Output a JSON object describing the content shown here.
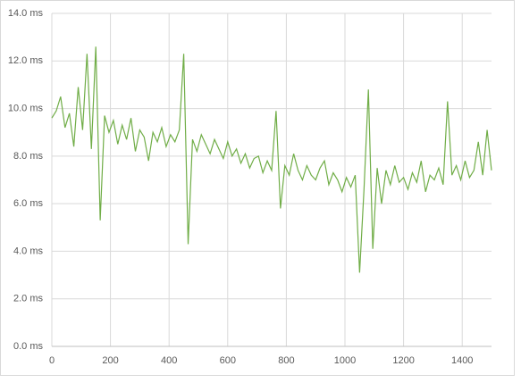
{
  "chart_data": {
    "type": "line",
    "color": "#70ad47",
    "grid": true,
    "x": [
      0,
      15,
      30,
      45,
      60,
      75,
      90,
      105,
      120,
      135,
      150,
      165,
      180,
      195,
      210,
      225,
      240,
      255,
      270,
      285,
      300,
      315,
      330,
      345,
      360,
      375,
      390,
      405,
      420,
      435,
      450,
      465,
      480,
      495,
      510,
      525,
      540,
      555,
      570,
      585,
      600,
      615,
      630,
      645,
      660,
      675,
      690,
      705,
      720,
      735,
      750,
      765,
      780,
      795,
      810,
      825,
      840,
      855,
      870,
      885,
      900,
      915,
      930,
      945,
      960,
      975,
      990,
      1005,
      1020,
      1035,
      1050,
      1065,
      1080,
      1095,
      1110,
      1125,
      1140,
      1155,
      1170,
      1185,
      1200,
      1215,
      1230,
      1245,
      1260,
      1275,
      1290,
      1305,
      1320,
      1335,
      1350,
      1365,
      1380,
      1395,
      1410,
      1425,
      1440,
      1455,
      1470,
      1485,
      1500
    ],
    "values": [
      9.6,
      9.9,
      10.5,
      9.2,
      9.8,
      8.4,
      10.9,
      9.1,
      12.3,
      8.3,
      12.6,
      5.3,
      9.7,
      9.0,
      9.5,
      8.5,
      9.3,
      8.7,
      9.6,
      8.2,
      9.1,
      8.8,
      7.8,
      9.0,
      8.6,
      9.2,
      8.4,
      8.9,
      8.6,
      9.1,
      12.3,
      4.3,
      8.7,
      8.2,
      8.9,
      8.5,
      8.1,
      8.7,
      8.3,
      7.9,
      8.6,
      8.0,
      8.3,
      7.7,
      8.1,
      7.5,
      7.9,
      8.0,
      7.3,
      7.8,
      7.4,
      9.9,
      5.8,
      7.6,
      7.2,
      8.1,
      7.4,
      7.0,
      7.6,
      7.2,
      7.0,
      7.5,
      7.8,
      6.8,
      7.3,
      7.0,
      6.5,
      7.1,
      6.7,
      7.2,
      3.1,
      6.6,
      10.8,
      4.1,
      7.5,
      6.0,
      7.4,
      6.8,
      7.6,
      6.9,
      7.1,
      6.6,
      7.3,
      6.9,
      7.8,
      6.5,
      7.2,
      7.0,
      7.5,
      6.8,
      10.3,
      7.2,
      7.6,
      7.0,
      7.8,
      7.1,
      7.4,
      8.6,
      7.2,
      9.1,
      7.4
    ],
    "xlim": [
      0,
      1500
    ],
    "xticks": [
      0,
      200,
      400,
      600,
      800,
      1000,
      1200,
      1400
    ],
    "ylim": [
      0,
      14
    ],
    "yticks": [
      {
        "value": 0,
        "label": "0.0 ms"
      },
      {
        "value": 2,
        "label": "2.0 ms"
      },
      {
        "value": 4,
        "label": "4.0 ms"
      },
      {
        "value": 6,
        "label": "6.0 ms"
      },
      {
        "value": 8,
        "label": "8.0 ms"
      },
      {
        "value": 10,
        "label": "10.0 ms"
      },
      {
        "value": 12,
        "label": "12.0 ms"
      },
      {
        "value": 14,
        "label": "14.0 ms"
      }
    ]
  }
}
